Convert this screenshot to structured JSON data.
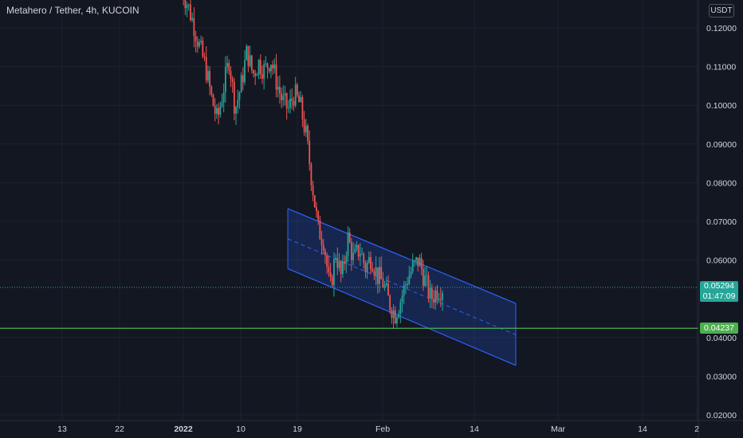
{
  "header": {
    "title": "Metahero / Tether, 4h, KUCOIN",
    "currency": "USDT"
  },
  "colors": {
    "background": "#131722",
    "grid": "#1e222d",
    "up": "#26a69a",
    "down": "#ef5350",
    "channel": "#2962ff",
    "support": "#4caf50",
    "last_price_tag": "#26a69a"
  },
  "price_axis": {
    "ticks": [
      "0.12000",
      "0.11000",
      "0.10000",
      "0.09000",
      "0.08000",
      "0.07000",
      "0.06000",
      "0.04000",
      "0.03000",
      "0.02000"
    ],
    "last_price_label": "0.05294",
    "countdown_label": "01:47:09",
    "support_label": "0.04237"
  },
  "time_axis": {
    "ticks": [
      "13",
      "22",
      "2022",
      "10",
      "19",
      "Feb",
      "14",
      "Mar",
      "14",
      "2"
    ],
    "bold_ticks": [
      "2022"
    ]
  },
  "chart_data": {
    "type": "candlestick",
    "ylim": [
      0.018,
      0.129
    ],
    "yticks": [
      0.12,
      0.11,
      0.1,
      0.09,
      0.08,
      0.07,
      0.06,
      0.04,
      0.03,
      0.02
    ],
    "xticks": [
      "13",
      "22",
      "2022",
      "10",
      "19",
      "Feb",
      "14",
      "Mar",
      "14",
      "2"
    ],
    "last_price": 0.05294,
    "horizontal_line": 0.04237,
    "channel": {
      "upper": [
        0.0733,
        0.0488
      ],
      "mid": [
        0.0655,
        0.0407
      ],
      "lower": [
        0.0578,
        0.0328
      ]
    },
    "price_path": [
      0.13,
      0.126,
      0.121,
      0.115,
      0.11,
      0.102,
      0.096,
      0.104,
      0.112,
      0.099,
      0.105,
      0.114,
      0.108,
      0.111,
      0.109,
      0.112,
      0.106,
      0.101,
      0.099,
      0.103,
      0.1,
      0.092,
      0.08,
      0.068,
      0.065,
      0.052,
      0.062,
      0.055,
      0.066,
      0.06,
      0.063,
      0.058,
      0.061,
      0.056,
      0.054,
      0.049,
      0.046,
      0.05,
      0.055,
      0.058,
      0.06,
      0.055,
      0.05,
      0.052,
      0.053
    ]
  }
}
